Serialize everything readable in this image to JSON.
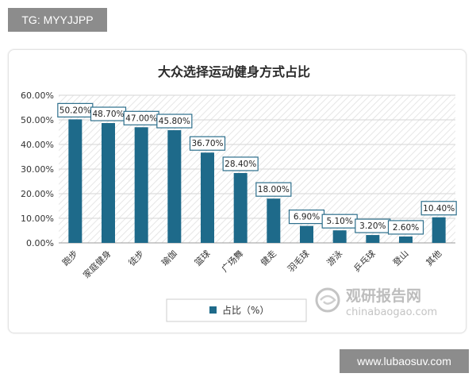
{
  "watermarks": {
    "top_left": "TG: MYYJJPP",
    "bottom_right": "www.lubaosuv.com"
  },
  "logo": {
    "name": "观研报告网",
    "url": "chinabaogao.com"
  },
  "colors": {
    "bar": "#1e6a8a",
    "grid": "#d6d6d6",
    "hatch": "#e6e6e6",
    "label_border": "#2d6f8c"
  },
  "chart_data": {
    "type": "bar",
    "title": "大众选择运动健身方式占比",
    "categories": [
      "跑步",
      "家庭健身",
      "徒步",
      "瑜伽",
      "篮球",
      "广场舞",
      "健走",
      "羽毛球",
      "游泳",
      "乒乓球",
      "登山",
      "其他"
    ],
    "series": [
      {
        "name": "占比（%）",
        "values": [
          50.2,
          48.7,
          47.0,
          45.8,
          36.7,
          28.4,
          18.0,
          6.9,
          5.1,
          3.2,
          2.6,
          10.4
        ],
        "labels": [
          "50.20%",
          "48.70%",
          "47.00%",
          "45.80%",
          "36.70%",
          "28.40%",
          "18.00%",
          "6.90%",
          "5.10%",
          "3.20%",
          "2.60%",
          "10.40%"
        ]
      }
    ],
    "yticks": [
      "0.00%",
      "10.00%",
      "20.00%",
      "30.00%",
      "40.00%",
      "50.00%",
      "60.00%"
    ],
    "ylim": [
      0,
      60
    ],
    "xlabel": "",
    "ylabel": "",
    "grid": true,
    "legend_position": "bottom"
  }
}
